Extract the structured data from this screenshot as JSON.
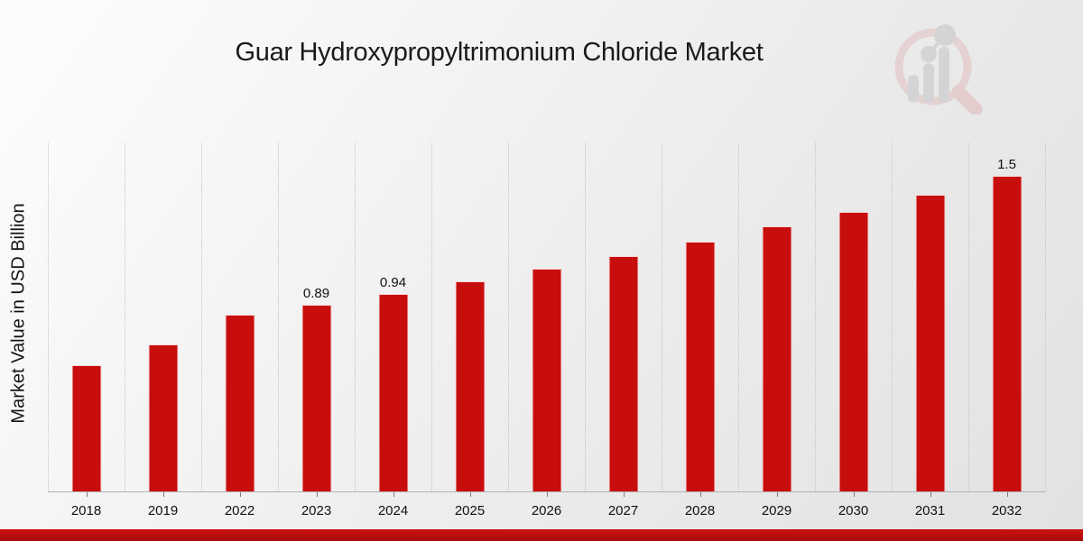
{
  "title": "Guar Hydroxypropyltrimonium Chloride Market",
  "y_axis_label": "Market Value in USD Billion",
  "colors": {
    "bar": "#c80d0d",
    "footer_band": "#c01010",
    "gridline": "#c4c4c4",
    "title_text": "#1a1a1a",
    "watermark_ring": "#e2bfbf",
    "watermark_bars": "#c3c3c8"
  },
  "chart_data": {
    "type": "bar",
    "title": "Guar Hydroxypropyltrimonium Chloride Market",
    "xlabel": "",
    "ylabel": "Market Value in USD Billion",
    "categories": [
      "2018",
      "2019",
      "2022",
      "2023",
      "2024",
      "2025",
      "2026",
      "2027",
      "2028",
      "2029",
      "2030",
      "2031",
      "2032"
    ],
    "values": [
      0.6,
      0.7,
      0.84,
      0.89,
      0.94,
      1.0,
      1.06,
      1.12,
      1.19,
      1.26,
      1.33,
      1.41,
      1.5
    ],
    "data_labels": {
      "2023": "0.89",
      "2024": "0.94",
      "2032": "1.5"
    },
    "ylim": [
      0,
      1.66
    ],
    "grid": "vertical-dotted",
    "legend": "none",
    "bar_color": "#c80d0d"
  }
}
